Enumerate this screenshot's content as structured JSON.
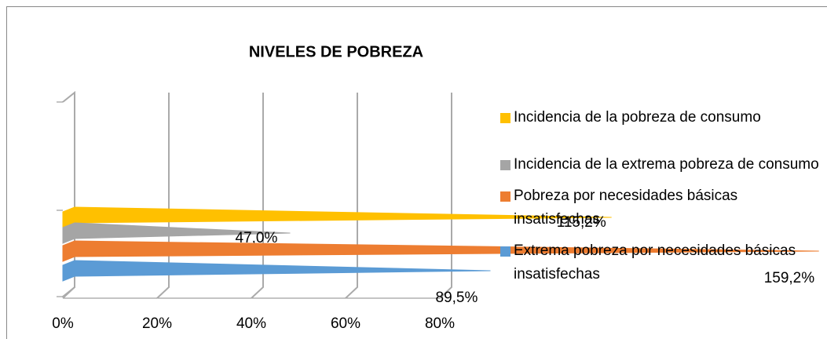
{
  "chart_data": {
    "type": "bar",
    "orientation": "horizontal",
    "title": "NIVELES DE POBREZA",
    "series": [
      {
        "name": "Incidencia de la pobreza de consumo",
        "color": "#ffc000",
        "values": [
          115.2
        ],
        "value_labels": [
          "115,2%"
        ]
      },
      {
        "name": "Incidencia de la extrema pobreza de consumo",
        "color": "#a5a5a5",
        "values": [
          47.0
        ],
        "value_labels": [
          "47,0%"
        ]
      },
      {
        "name": "Pobreza por necesidades básicas insatisfechas",
        "color": "#ed7d31",
        "values": [
          159.2
        ],
        "value_labels": [
          "159,2%"
        ]
      },
      {
        "name": "Extrema pobreza por necesidades básicas insatisfechas",
        "color": "#5b9bd5",
        "values": [
          89.5
        ],
        "value_labels": [
          "89,5%"
        ]
      }
    ],
    "xlim": [
      0,
      80
    ],
    "xticks": [
      {
        "value": 0,
        "label": "0%"
      },
      {
        "value": 20,
        "label": "20%"
      },
      {
        "value": 40,
        "label": "40%"
      },
      {
        "value": 60,
        "label": "60%"
      },
      {
        "value": 80,
        "label": "80%"
      }
    ],
    "grid": true,
    "legend": "right"
  }
}
